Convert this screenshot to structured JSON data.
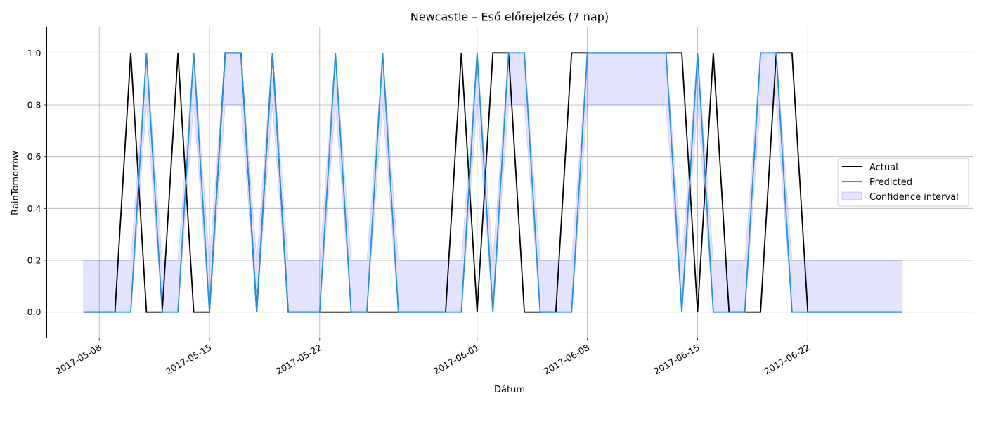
{
  "chart_data": {
    "type": "line",
    "title": "Newcastle – Eső előrejelzés (7 nap)",
    "xlabel": "Dátum",
    "ylabel": "RainTomorrow",
    "x_start": "2017-05-07",
    "x": [
      "2017-05-07",
      "2017-05-08",
      "2017-05-09",
      "2017-05-10",
      "2017-05-11",
      "2017-05-12",
      "2017-05-13",
      "2017-05-14",
      "2017-05-15",
      "2017-05-16",
      "2017-05-17",
      "2017-05-18",
      "2017-05-19",
      "2017-05-20",
      "2017-05-21",
      "2017-05-22",
      "2017-05-23",
      "2017-05-24",
      "2017-05-25",
      "2017-05-26",
      "2017-05-27",
      "2017-05-28",
      "2017-05-29",
      "2017-05-30",
      "2017-05-31",
      "2017-06-01",
      "2017-06-02",
      "2017-06-03",
      "2017-06-04",
      "2017-06-05",
      "2017-06-06",
      "2017-06-07",
      "2017-06-08",
      "2017-06-09",
      "2017-06-10",
      "2017-06-11",
      "2017-06-12",
      "2017-06-13",
      "2017-06-14",
      "2017-06-15",
      "2017-06-16",
      "2017-06-17",
      "2017-06-18",
      "2017-06-19",
      "2017-06-20",
      "2017-06-21",
      "2017-06-22",
      "2017-06-23",
      "2017-06-24",
      "2017-06-25",
      "2017-06-26",
      "2017-06-27",
      "2017-06-28"
    ],
    "series": [
      {
        "name": "Actual",
        "color": "#000000",
        "values": [
          0,
          0,
          0,
          1,
          0,
          0,
          1,
          0,
          0,
          1,
          1,
          0,
          1,
          0,
          0,
          0,
          0,
          0,
          0,
          0,
          0,
          0,
          0,
          0,
          1,
          0,
          1,
          1,
          0,
          0,
          0,
          1,
          1,
          1,
          1,
          1,
          1,
          1,
          1,
          0,
          1,
          0,
          0,
          0,
          1,
          1,
          0,
          0,
          0,
          0,
          0,
          0,
          0
        ]
      },
      {
        "name": "Predicted",
        "color": "#1f8ef1",
        "values": [
          0,
          0,
          0,
          0,
          1,
          0,
          0,
          1,
          0,
          1,
          1,
          0,
          1,
          0,
          0,
          0,
          1,
          0,
          0,
          1,
          0,
          0,
          0,
          0,
          0,
          1,
          0,
          1,
          1,
          0,
          0,
          0,
          1,
          1,
          1,
          1,
          1,
          1,
          0,
          1,
          0,
          0,
          0,
          1,
          1,
          0,
          0,
          0,
          0,
          0,
          0,
          0,
          0
        ]
      },
      {
        "name": "Confidence interval",
        "color": "#0000ff",
        "type": "band",
        "lower": [
          0,
          0,
          0,
          0,
          0.8,
          0,
          0,
          0.8,
          0,
          0.8,
          0.8,
          0,
          0.8,
          0,
          0,
          0,
          0.8,
          0,
          0,
          0.8,
          0,
          0,
          0,
          0,
          0,
          0.8,
          0,
          0.8,
          0.8,
          0,
          0,
          0,
          0.8,
          0.8,
          0.8,
          0.8,
          0.8,
          0.8,
          0,
          0.8,
          0,
          0,
          0,
          0.8,
          0.8,
          0,
          0,
          0,
          0,
          0,
          0,
          0,
          0
        ],
        "upper": [
          0.2,
          0.2,
          0.2,
          0.2,
          1,
          0.2,
          0.2,
          1,
          0.2,
          1,
          1,
          0.2,
          1,
          0.2,
          0.2,
          0.2,
          1,
          0.2,
          0.2,
          1,
          0.2,
          0.2,
          0.2,
          0.2,
          0.2,
          1,
          0.2,
          1,
          1,
          0.2,
          0.2,
          0.2,
          1,
          1,
          1,
          1,
          1,
          1,
          0.2,
          1,
          0.2,
          0.2,
          0.2,
          1,
          1,
          0.2,
          0.2,
          0.2,
          0.2,
          0.2,
          0.2,
          0.2,
          0.2
        ]
      }
    ],
    "x_ticks": [
      "2017-05-08",
      "2017-05-15",
      "2017-05-22",
      "2017-06-01",
      "2017-06-08",
      "2017-06-15",
      "2017-06-22"
    ],
    "y_ticks": [
      "0.0",
      "0.2",
      "0.4",
      "0.6",
      "0.8",
      "1.0"
    ],
    "ylim": [
      -0.1,
      1.1
    ],
    "xlim": [
      "2017-05-04T16:00",
      "2017-07-02T12:00"
    ],
    "grid": true,
    "legend_placement": "center-right"
  }
}
